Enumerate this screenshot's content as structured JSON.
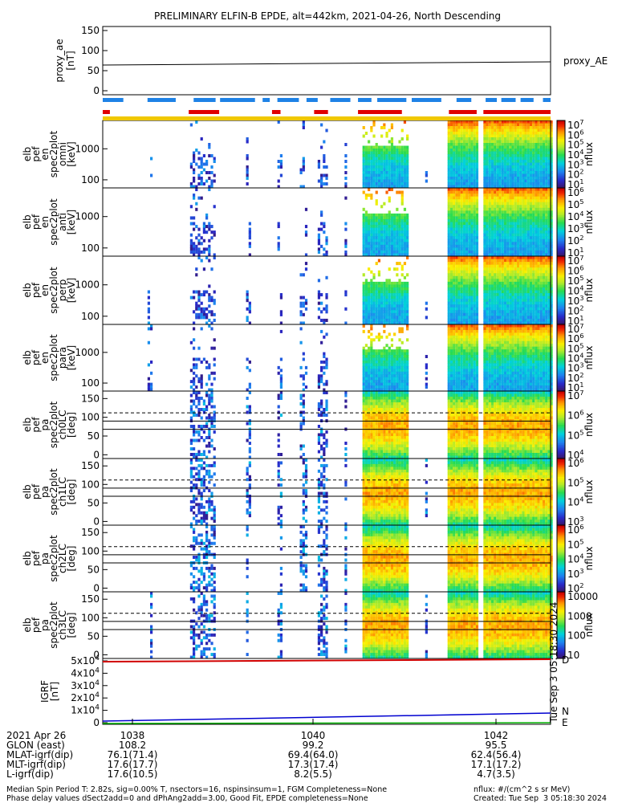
{
  "title": "PRELIMINARY ELFIN-B EPDE, alt=442km, 2021-04-26, North Descending",
  "colors": {
    "sci_zone": "#1e82e6",
    "fast_mode": "#e00000",
    "completeness": "#f0c800",
    "igrf_blue": "#0000d0",
    "igrf_green": "#00b000",
    "igrf_red": "#d00000"
  },
  "chart_data": {
    "type": "heatmap",
    "panels": [
      {
        "ylabel": [
          "proxy_ae",
          "[nT]"
        ],
        "ticks": [
          "150",
          "100",
          "50",
          "0"
        ],
        "legend": "proxy_AE",
        "type": "line",
        "ylim": [
          -10,
          160
        ],
        "values_start": 64,
        "values_end": 72
      },
      {
        "ylabel": [
          "elb",
          "pef",
          "en",
          "spec2plot",
          "omni",
          "[keV]"
        ],
        "ticks": [
          "1000",
          "100"
        ],
        "cbar_ticks": [
          "10^7",
          "10^6",
          "10^5",
          "10^4",
          "10^3",
          "10^2",
          "10^1"
        ],
        "cbar_label": "nflux"
      },
      {
        "ylabel": [
          "elb",
          "pef",
          "en",
          "spec2plot",
          "anti",
          "[keV]"
        ],
        "ticks": [
          "1000",
          "100"
        ],
        "cbar_ticks": [
          "10^6",
          "10^5",
          "10^4",
          "10^3",
          "10^2",
          "10^1"
        ],
        "cbar_label": "nflux"
      },
      {
        "ylabel": [
          "elb",
          "pef",
          "en",
          "spec2plot",
          "perp",
          "[keV]"
        ],
        "ticks": [
          "1000",
          "100"
        ],
        "cbar_ticks": [
          "10^7",
          "10^6",
          "10^5",
          "10^4",
          "10^3",
          "10^2",
          "10^1"
        ],
        "cbar_label": "nflux"
      },
      {
        "ylabel": [
          "elb",
          "pef",
          "en",
          "spec2plot",
          "para",
          "[keV]"
        ],
        "ticks": [
          "1000",
          "100"
        ],
        "cbar_ticks": [
          "10^7",
          "10^6",
          "10^5",
          "10^4",
          "10^3",
          "10^2",
          "10^1"
        ],
        "cbar_label": "nflux"
      },
      {
        "ylabel": [
          "elb",
          "pef",
          "pa",
          "spec2plot",
          "ch0LC",
          "[deg]"
        ],
        "ticks": [
          "150",
          "100",
          "50",
          "0"
        ],
        "cbar_ticks": [
          "10^7",
          "10^6",
          "10^5",
          "10^4"
        ],
        "cbar_label": "nflux"
      },
      {
        "ylabel": [
          "elb",
          "pef",
          "pa",
          "spec2plot",
          "ch1LC",
          "[deg]"
        ],
        "ticks": [
          "150",
          "100",
          "50",
          "0"
        ],
        "cbar_ticks": [
          "10^6",
          "10^5",
          "10^4",
          "10^3"
        ],
        "cbar_label": "nflux"
      },
      {
        "ylabel": [
          "elb",
          "pef",
          "pa",
          "spec2plot",
          "ch2LC",
          "[deg]"
        ],
        "ticks": [
          "150",
          "100",
          "50",
          "0"
        ],
        "cbar_ticks": [
          "10^6",
          "10^5",
          "10^4",
          "10^3",
          "10^2"
        ],
        "cbar_label": "nflux"
      },
      {
        "ylabel": [
          "elb",
          "pef",
          "pa",
          "spec2plot",
          "ch3LC",
          "[deg]"
        ],
        "ticks": [
          "150",
          "100",
          "50",
          "0"
        ],
        "cbar_ticks": [
          "10000",
          "1000",
          "100",
          "10"
        ],
        "cbar_label": "nflux"
      },
      {
        "ylabel": [
          "IGRF",
          "[nT]"
        ],
        "ticks": [
          "5x10^4",
          "4x10^4",
          "3x10^4",
          "2x10^4",
          "1x10^4",
          "0"
        ],
        "legend": [
          "D",
          "N",
          "E"
        ],
        "type": "line"
      }
    ],
    "x_ticks": [
      "1038",
      "1040",
      "1042"
    ],
    "sci_zone_segments": [
      [
        0.0,
        0.046
      ],
      [
        0.1,
        0.163
      ],
      [
        0.203,
        0.252
      ],
      [
        0.262,
        0.34
      ],
      [
        0.357,
        0.373
      ],
      [
        0.39,
        0.438
      ],
      [
        0.455,
        0.48
      ],
      [
        0.508,
        0.553
      ],
      [
        0.57,
        0.6
      ],
      [
        0.613,
        0.678
      ],
      [
        0.69,
        0.756
      ],
      [
        0.79,
        0.823
      ],
      [
        0.855,
        0.88
      ],
      [
        0.89,
        0.922
      ],
      [
        0.933,
        0.962
      ],
      [
        0.983,
        1.0
      ]
    ],
    "fast_mode_segments": [
      [
        0.0,
        0.016
      ],
      [
        0.192,
        0.26
      ],
      [
        0.378,
        0.397
      ],
      [
        0.472,
        0.503
      ],
      [
        0.57,
        0.668
      ],
      [
        0.773,
        0.835
      ],
      [
        0.85,
        1.0
      ]
    ]
  },
  "time_axis": {
    "date": "2021 Apr 26",
    "rows": [
      {
        "label": "GLON (east)",
        "values": [
          "108.2",
          "99.2",
          "95.5"
        ]
      },
      {
        "label": "MLAT-igrf(dip)",
        "values": [
          "76.1(71.4)",
          "69.4(64.0)",
          "62.4(56.4)"
        ]
      },
      {
        "label": "MLT-igrf(dip)",
        "values": [
          "17.6(17.7)",
          "17.3(17.4)",
          "17.1(17.2)"
        ]
      },
      {
        "label": "L-igrf(dip)",
        "values": [
          "17.6(10.5)",
          "8.2(5.5)",
          "4.7(3.5)"
        ]
      }
    ]
  },
  "footer": {
    "line1": "Median Spin Period T: 2.82s, sig=0.00% T, nsectors=16, nspinsinsum=1, FGM Completeness=None",
    "line2": "Phase delay values dSect2add=0 and dPhAng2add=3.00, Good Fit, EPDE completeness=None",
    "right1": "nflux: #/(cm^2 s sr MeV)",
    "right2": "Created: Tue Sep  3 05:18:30 2024",
    "stamp": "Tue Sep  3 05:18:30 2024"
  }
}
